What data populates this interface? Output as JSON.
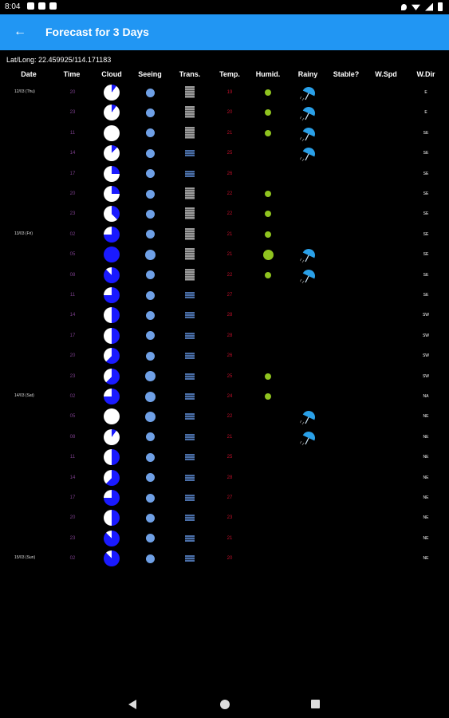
{
  "status_bar": {
    "time": "8:04"
  },
  "app_bar": {
    "title": "Forecast for 3 Days"
  },
  "location": {
    "text": "Lat/Long: 22.459925/114.171183"
  },
  "columns": [
    "Date",
    "Time",
    "Cloud",
    "Seeing",
    "Trans.",
    "Temp.",
    "Humid.",
    "Rainy",
    "Stable?",
    "W.Spd",
    "W.Dir"
  ],
  "colors": {
    "accent": "#2196f3",
    "cloud_cover": "#1a1aff",
    "seeing": "#6fa0e6",
    "humid": "#8fc31f",
    "temp_text": "#c0102a",
    "time_text": "#7a3e8a"
  },
  "rows": [
    {
      "date": "12/03 (Thu)",
      "time": "20",
      "cloud": 0.1,
      "seeing": "s",
      "trans": "g",
      "temp": "19",
      "humid": "s",
      "rainy": true,
      "wdir": "E"
    },
    {
      "date": "",
      "time": "23",
      "cloud": 0.1,
      "seeing": "s",
      "trans": "g",
      "temp": "20",
      "humid": "s",
      "rainy": true,
      "wdir": "E"
    },
    {
      "date": "",
      "time": "11",
      "cloud": 0.0,
      "seeing": "s",
      "trans": "g",
      "temp": "21",
      "humid": "s",
      "rainy": true,
      "wdir": "SE"
    },
    {
      "date": "",
      "time": "14",
      "cloud": 0.12,
      "seeing": "s",
      "trans": "b",
      "temp": "25",
      "humid": "",
      "rainy": true,
      "wdir": "SE"
    },
    {
      "date": "",
      "time": "17",
      "cloud": 0.25,
      "seeing": "s",
      "trans": "b",
      "temp": "26",
      "humid": "",
      "rainy": false,
      "wdir": "SE"
    },
    {
      "date": "",
      "time": "20",
      "cloud": 0.25,
      "seeing": "s",
      "trans": "g",
      "temp": "22",
      "humid": "s",
      "rainy": false,
      "wdir": "SE"
    },
    {
      "date": "",
      "time": "23",
      "cloud": 0.38,
      "seeing": "s",
      "trans": "g",
      "temp": "22",
      "humid": "s",
      "rainy": false,
      "wdir": "SE"
    },
    {
      "date": "13/03 (Fri)",
      "time": "02",
      "cloud": 0.75,
      "seeing": "s",
      "trans": "g",
      "temp": "21",
      "humid": "s",
      "rainy": false,
      "wdir": "SE"
    },
    {
      "date": "",
      "time": "05",
      "cloud": 1.0,
      "seeing": "m",
      "trans": "g",
      "temp": "21",
      "humid": "l",
      "rainy": true,
      "wdir": "SE"
    },
    {
      "date": "",
      "time": "08",
      "cloud": 0.88,
      "seeing": "s",
      "trans": "g",
      "temp": "22",
      "humid": "s",
      "rainy": true,
      "wdir": "SE"
    },
    {
      "date": "",
      "time": "11",
      "cloud": 0.75,
      "seeing": "s",
      "trans": "b",
      "temp": "27",
      "humid": "",
      "rainy": false,
      "wdir": "SE"
    },
    {
      "date": "",
      "time": "14",
      "cloud": 0.5,
      "seeing": "s",
      "trans": "b",
      "temp": "28",
      "humid": "",
      "rainy": false,
      "wdir": "SW"
    },
    {
      "date": "",
      "time": "17",
      "cloud": 0.5,
      "seeing": "s",
      "trans": "b",
      "temp": "28",
      "humid": "",
      "rainy": false,
      "wdir": "SW"
    },
    {
      "date": "",
      "time": "20",
      "cloud": 0.62,
      "seeing": "s",
      "trans": "b",
      "temp": "26",
      "humid": "",
      "rainy": false,
      "wdir": "SW"
    },
    {
      "date": "",
      "time": "23",
      "cloud": 0.62,
      "seeing": "m",
      "trans": "b",
      "temp": "25",
      "humid": "s",
      "rainy": false,
      "wdir": "SW"
    },
    {
      "date": "14/03 (Sat)",
      "time": "02",
      "cloud": 0.75,
      "seeing": "m",
      "trans": "b",
      "temp": "24",
      "humid": "s",
      "rainy": false,
      "wdir": "NA"
    },
    {
      "date": "",
      "time": "05",
      "cloud": 0.0,
      "seeing": "m",
      "trans": "b",
      "temp": "22",
      "humid": "",
      "rainy": true,
      "wdir": "NE"
    },
    {
      "date": "",
      "time": "08",
      "cloud": 0.1,
      "seeing": "s",
      "trans": "b",
      "temp": "21",
      "humid": "",
      "rainy": true,
      "wdir": "NE"
    },
    {
      "date": "",
      "time": "11",
      "cloud": 0.5,
      "seeing": "s",
      "trans": "b",
      "temp": "25",
      "humid": "",
      "rainy": false,
      "wdir": "NE"
    },
    {
      "date": "",
      "time": "14",
      "cloud": 0.62,
      "seeing": "s",
      "trans": "b",
      "temp": "28",
      "humid": "",
      "rainy": false,
      "wdir": "NE"
    },
    {
      "date": "",
      "time": "17",
      "cloud": 0.75,
      "seeing": "s",
      "trans": "b",
      "temp": "27",
      "humid": "",
      "rainy": false,
      "wdir": "NE"
    },
    {
      "date": "",
      "time": "20",
      "cloud": 0.5,
      "seeing": "s",
      "trans": "b",
      "temp": "23",
      "humid": "",
      "rainy": false,
      "wdir": "NE"
    },
    {
      "date": "",
      "time": "23",
      "cloud": 0.88,
      "seeing": "s",
      "trans": "b",
      "temp": "21",
      "humid": "",
      "rainy": false,
      "wdir": "NE"
    },
    {
      "date": "15/03 (Sun)",
      "time": "02",
      "cloud": 0.88,
      "seeing": "s",
      "trans": "b",
      "temp": "20",
      "humid": "",
      "rainy": false,
      "wdir": "NE"
    }
  ]
}
